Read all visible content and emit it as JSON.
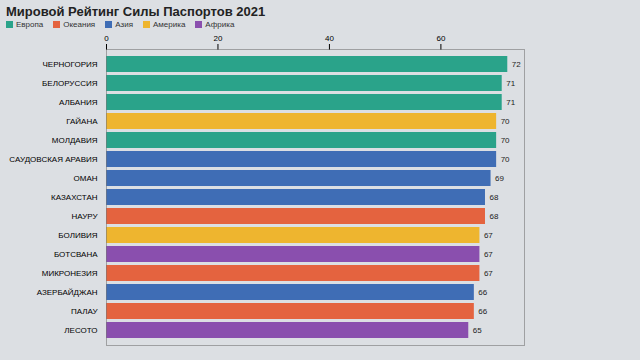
{
  "chart_data": {
    "type": "bar",
    "orientation": "horizontal",
    "title": "Мировой Рейтинг Силы Паспортов 2021",
    "categories": [
      "ЧЕРНОГОРИЯ",
      "БЕЛОРУССИЯ",
      "АЛБАНИЯ",
      "ГАЙАНА",
      "МОЛДАВИЯ",
      "САУДОВСКАЯ АРАВИЯ",
      "ОМАН",
      "КАЗАХСТАН",
      "НАУРУ",
      "БОЛИВИЯ",
      "БОТСВАНА",
      "МИКРОНЕЗИЯ",
      "АЗЕРБАЙДЖАН",
      "ПАЛАУ",
      "ЛЕСОТО"
    ],
    "series": [
      {
        "name": "Европа",
        "color": "#2aa38a",
        "values": [
          72,
          71,
          71,
          null,
          70,
          null,
          null,
          null,
          null,
          null,
          null,
          null,
          null,
          null,
          null
        ]
      },
      {
        "name": "Океания",
        "color": "#e4633f",
        "values": [
          null,
          null,
          null,
          null,
          null,
          null,
          null,
          null,
          68,
          null,
          null,
          67,
          null,
          66,
          null
        ]
      },
      {
        "name": "Азия",
        "color": "#3f6db5",
        "values": [
          null,
          null,
          null,
          null,
          null,
          70,
          69,
          68,
          null,
          null,
          null,
          null,
          66,
          null,
          null
        ]
      },
      {
        "name": "Америка",
        "color": "#eeb52f",
        "values": [
          null,
          null,
          null,
          70,
          null,
          null,
          null,
          null,
          null,
          67,
          null,
          null,
          null,
          null,
          null
        ]
      },
      {
        "name": "Африка",
        "color": "#8a4fae",
        "values": [
          null,
          null,
          null,
          null,
          null,
          null,
          null,
          null,
          null,
          null,
          67,
          null,
          null,
          null,
          65
        ]
      }
    ],
    "xlim": [
      0,
      75
    ],
    "xticks": [
      0,
      20,
      40,
      60
    ],
    "legend": "top-left",
    "data_labels": true,
    "grid": false
  }
}
